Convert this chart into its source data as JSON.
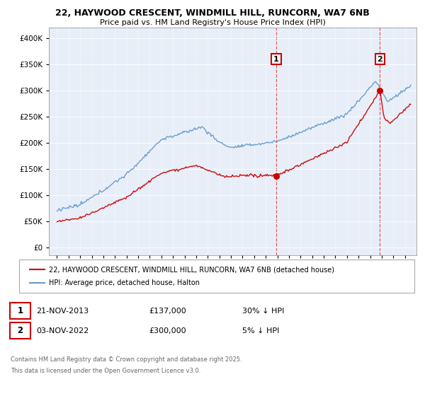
{
  "title1": "22, HAYWOOD CRESCENT, WINDMILL HILL, RUNCORN, WA7 6NB",
  "title2": "Price paid vs. HM Land Registry's House Price Index (HPI)",
  "legend_line1": "22, HAYWOOD CRESCENT, WINDMILL HILL, RUNCORN, WA7 6NB (detached house)",
  "legend_line2": "HPI: Average price, detached house, Halton",
  "transaction1_date": "21-NOV-2013",
  "transaction1_price": "£137,000",
  "transaction1_note": "30% ↓ HPI",
  "transaction2_date": "03-NOV-2022",
  "transaction2_price": "£300,000",
  "transaction2_note": "5% ↓ HPI",
  "footer": "Contains HM Land Registry data © Crown copyright and database right 2025.\nThis data is licensed under the Open Government Licence v3.0.",
  "red_color": "#cc0000",
  "blue_color": "#6699cc",
  "background_color": "#e8eef8",
  "ylim_max": 420000,
  "ylim_min": -15000,
  "vline1_year": 2013.9,
  "vline2_year": 2022.85,
  "transaction1_price_val": 137000,
  "transaction2_price_val": 300000
}
